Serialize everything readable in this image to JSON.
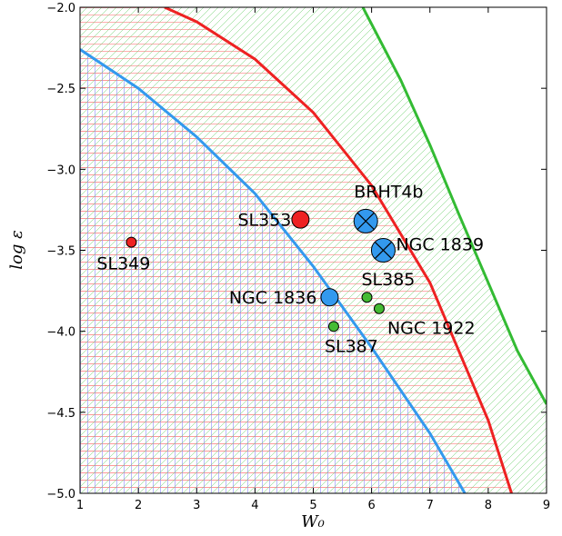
{
  "chart_data": {
    "type": "scatter",
    "title": "",
    "xlabel": "W₀",
    "ylabel": "log ε",
    "xlim": [
      1,
      9
    ],
    "ylim": [
      -5.0,
      -2.0
    ],
    "xticks": [
      1,
      2,
      3,
      4,
      5,
      6,
      7,
      8,
      9
    ],
    "xtick_labels": [
      "1",
      "2",
      "3",
      "4",
      "5",
      "6",
      "7",
      "8",
      "9"
    ],
    "yticks": [
      -2.0,
      -2.5,
      -3.0,
      -3.5,
      -4.0,
      -4.5,
      -5.0
    ],
    "ytick_labels": [
      "−2.0",
      "−2.5",
      "−3.0",
      "−3.5",
      "−4.0",
      "−4.5",
      "−5.0"
    ],
    "grid": false,
    "curves": [
      {
        "color": "#3399ee",
        "hatch": "grid",
        "points": [
          [
            1.0,
            -2.26
          ],
          [
            2.0,
            -2.5
          ],
          [
            3.0,
            -2.8
          ],
          [
            4.0,
            -3.15
          ],
          [
            5.0,
            -3.6
          ],
          [
            6.0,
            -4.1
          ],
          [
            7.0,
            -4.63
          ],
          [
            7.6,
            -5.0
          ]
        ]
      },
      {
        "color": "#ee2222",
        "hatch": "horizontal",
        "points": [
          [
            2.45,
            -2.0
          ],
          [
            3.0,
            -2.09
          ],
          [
            4.0,
            -2.32
          ],
          [
            5.0,
            -2.65
          ],
          [
            6.0,
            -3.1
          ],
          [
            7.0,
            -3.7
          ],
          [
            8.0,
            -4.55
          ],
          [
            8.4,
            -5.0
          ]
        ]
      },
      {
        "color": "#33bb33",
        "hatch": "diagonal",
        "points": [
          [
            5.85,
            -2.0
          ],
          [
            6.5,
            -2.45
          ],
          [
            7.0,
            -2.85
          ],
          [
            7.5,
            -3.28
          ],
          [
            8.0,
            -3.7
          ],
          [
            8.5,
            -4.12
          ],
          [
            9.0,
            -4.45
          ]
        ]
      }
    ],
    "points": [
      {
        "label": "SL349",
        "x": 1.88,
        "y": -3.45,
        "color": "#ee2222",
        "size": "small",
        "cross": false
      },
      {
        "label": "SL353",
        "x": 4.78,
        "y": -3.31,
        "color": "#ee2222",
        "size": "medium",
        "cross": false
      },
      {
        "label": "BRHT4b",
        "x": 5.9,
        "y": -3.32,
        "color": "#3399ee",
        "size": "large",
        "cross": true
      },
      {
        "label": "NGC 1839",
        "x": 6.2,
        "y": -3.5,
        "color": "#3399ee",
        "size": "large",
        "cross": true
      },
      {
        "label": "NGC 1836",
        "x": 5.28,
        "y": -3.79,
        "color": "#3399ee",
        "size": "medium",
        "cross": false
      },
      {
        "label": "SL385",
        "x": 5.92,
        "y": -3.79,
        "color": "#44bb33",
        "size": "small",
        "cross": false
      },
      {
        "label": "NGC 1922",
        "x": 6.13,
        "y": -3.86,
        "color": "#44bb33",
        "size": "small",
        "cross": false
      },
      {
        "label": "SL387",
        "x": 5.35,
        "y": -3.97,
        "color": "#44bb33",
        "size": "small",
        "cross": false
      }
    ]
  }
}
